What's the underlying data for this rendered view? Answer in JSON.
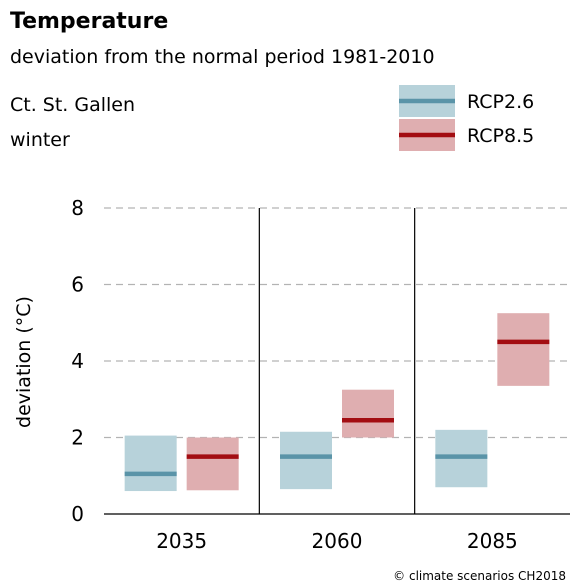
{
  "title": "Temperature",
  "subtitle": "deviation from the normal period 1981-2010",
  "region": "Ct. St. Gallen",
  "season": "winter",
  "credit": "© climate scenarios CH2018",
  "chart_data": {
    "type": "box",
    "title": "Temperature",
    "subtitle": "deviation from the normal period 1981-2010",
    "xlabel": "",
    "ylabel": "deviation (°C)",
    "ylim": [
      0,
      8
    ],
    "yticks": [
      0,
      2,
      4,
      6,
      8
    ],
    "grid": "dashed horizontal",
    "legend_position": "top-right",
    "categories": [
      "2035",
      "2060",
      "2085"
    ],
    "series": [
      {
        "name": "RCP2.6",
        "box_color": "#b7d2da",
        "median_color": "#5a94a8",
        "values": [
          {
            "low": 0.6,
            "median": 1.05,
            "high": 2.05
          },
          {
            "low": 0.65,
            "median": 1.5,
            "high": 2.15
          },
          {
            "low": 0.7,
            "median": 1.5,
            "high": 2.2
          }
        ]
      },
      {
        "name": "RCP8.5",
        "box_color": "#dfaeb0",
        "median_color": "#a30d12",
        "values": [
          {
            "low": 0.62,
            "median": 1.5,
            "high": 2.0
          },
          {
            "low": 2.0,
            "median": 2.45,
            "high": 3.25
          },
          {
            "low": 3.35,
            "median": 4.5,
            "high": 5.25
          }
        ]
      }
    ]
  }
}
